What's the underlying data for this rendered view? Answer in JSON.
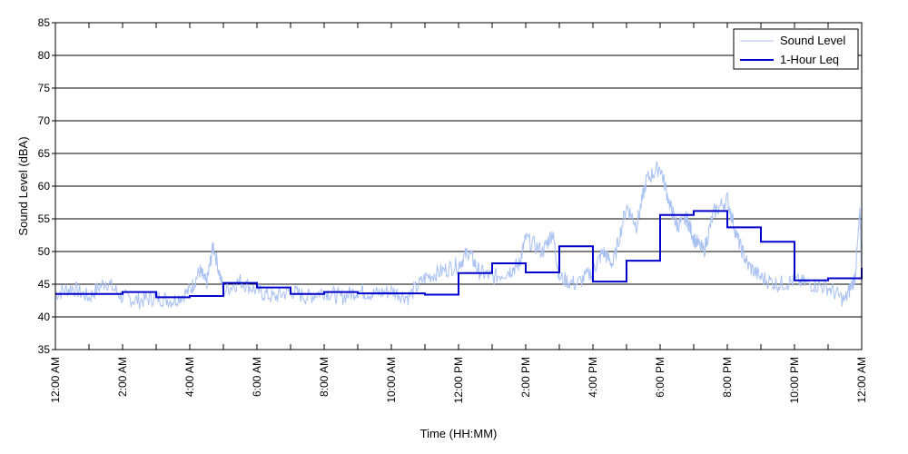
{
  "chart_data": {
    "type": "line",
    "xlabel": "Time (HH:MM)",
    "ylabel": "Sound Level (dBA)",
    "ylim": [
      35,
      85
    ],
    "yticks": [
      35,
      40,
      45,
      50,
      55,
      60,
      65,
      70,
      75,
      80,
      85
    ],
    "xlim_hours": [
      0,
      24
    ],
    "xtick_hours": [
      0,
      2,
      4,
      6,
      8,
      10,
      12,
      14,
      16,
      18,
      20,
      22,
      24
    ],
    "xtick_labels": [
      "12:00 AM",
      "2:00 AM",
      "4:00 AM",
      "6:00 AM",
      "8:00 AM",
      "10:00 AM",
      "12:00 PM",
      "2:00 PM",
      "4:00 PM",
      "6:00 PM",
      "8:00 PM",
      "10:00 PM",
      "12:00 AM"
    ],
    "grid": "horizontal",
    "legend_position": "top-right",
    "series": [
      {
        "name": "Sound Level",
        "color": "#a9c2f2",
        "points": [
          [
            0,
            43.5
          ],
          [
            0.5,
            44.5
          ],
          [
            1,
            43
          ],
          [
            1.5,
            45.5
          ],
          [
            2,
            43
          ],
          [
            2.5,
            42.5
          ],
          [
            3,
            43
          ],
          [
            3.5,
            42.5
          ],
          [
            4,
            44
          ],
          [
            4.3,
            47
          ],
          [
            4.5,
            45
          ],
          [
            4.7,
            51
          ],
          [
            5,
            44
          ],
          [
            5.5,
            45.5
          ],
          [
            6,
            44
          ],
          [
            6.5,
            43
          ],
          [
            7,
            44
          ],
          [
            7.5,
            43
          ],
          [
            8,
            44
          ],
          [
            8.5,
            43
          ],
          [
            9,
            44
          ],
          [
            9.5,
            43.5
          ],
          [
            10,
            44
          ],
          [
            10.5,
            43
          ],
          [
            11,
            46
          ],
          [
            11.5,
            47
          ],
          [
            12,
            48
          ],
          [
            12.3,
            50
          ],
          [
            12.6,
            47
          ],
          [
            13,
            46
          ],
          [
            13.5,
            47
          ],
          [
            13.8,
            48
          ],
          [
            14,
            52
          ],
          [
            14.5,
            50
          ],
          [
            14.8,
            53
          ],
          [
            15,
            46
          ],
          [
            15.5,
            45
          ],
          [
            16,
            47
          ],
          [
            16.3,
            50
          ],
          [
            16.6,
            48
          ],
          [
            17,
            57
          ],
          [
            17.3,
            54
          ],
          [
            17.6,
            61
          ],
          [
            18,
            63
          ],
          [
            18.3,
            57
          ],
          [
            18.5,
            54
          ],
          [
            18.8,
            55
          ],
          [
            19,
            52
          ],
          [
            19.3,
            50
          ],
          [
            19.6,
            56
          ],
          [
            20,
            58
          ],
          [
            20.3,
            52
          ],
          [
            20.6,
            48
          ],
          [
            21,
            46
          ],
          [
            21.5,
            45
          ],
          [
            22,
            45.5
          ],
          [
            22.5,
            45
          ],
          [
            23,
            44.5
          ],
          [
            23.5,
            42.5
          ],
          [
            23.8,
            46
          ],
          [
            23.95,
            56
          ],
          [
            24,
            46
          ]
        ]
      },
      {
        "name": "1-Hour Leq",
        "color": "#0000cc",
        "hourly_values": [
          43.5,
          43.5,
          43.8,
          43.0,
          43.2,
          45.2,
          44.5,
          43.5,
          43.8,
          43.6,
          43.6,
          43.4,
          46.7,
          48.2,
          46.8,
          50.8,
          45.4,
          48.6,
          55.6,
          56.2,
          53.7,
          51.5,
          45.6,
          45.9,
          47.5
        ]
      }
    ]
  }
}
